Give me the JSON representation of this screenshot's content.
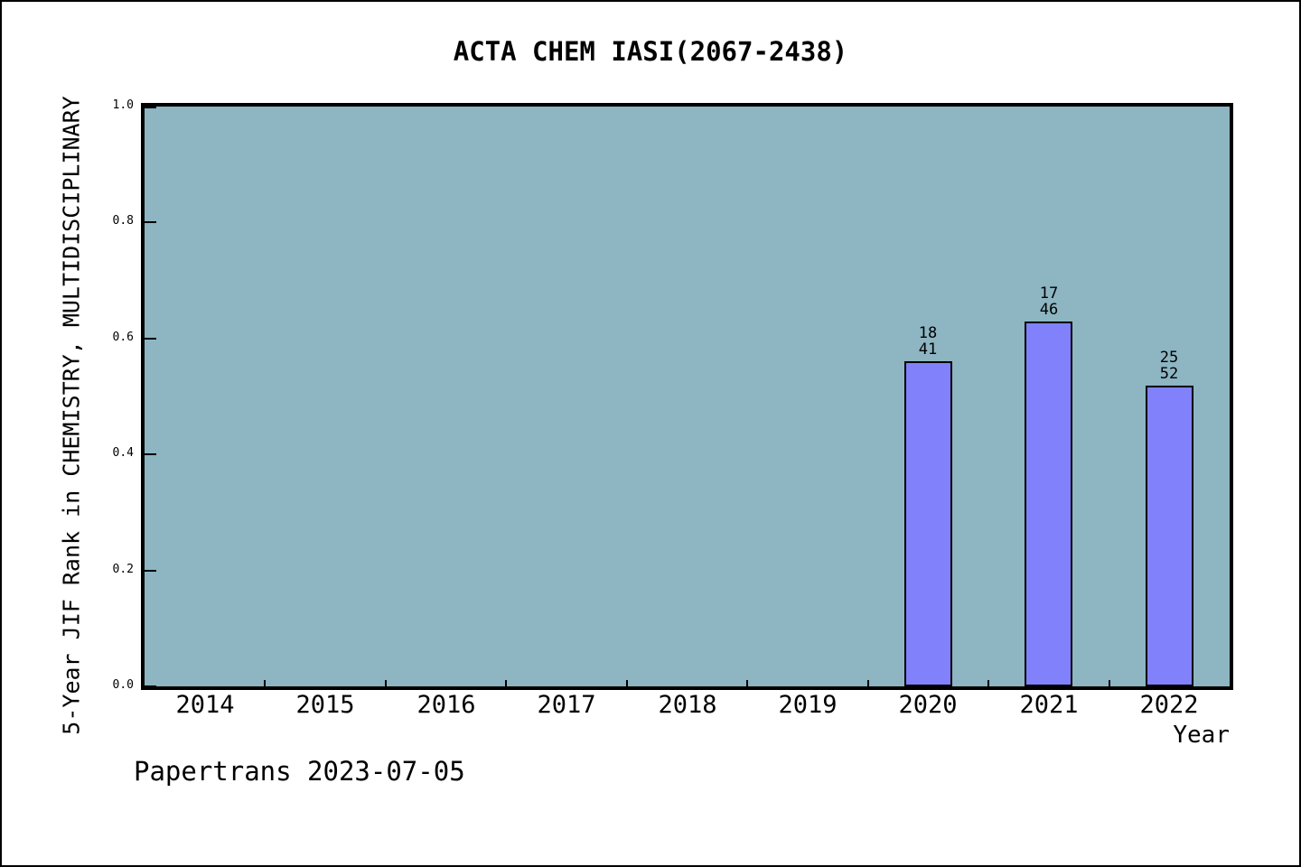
{
  "figure": {
    "background": "#ffffff",
    "border_color": "#000000"
  },
  "chart_data": {
    "type": "bar",
    "title": "ACTA CHEM IASI(2067-2438)",
    "xlabel": "Year",
    "ylabel": "5-Year JIF Rank in CHEMISTRY, MULTIDISCIPLINARY",
    "categories": [
      "2014",
      "2015",
      "2016",
      "2017",
      "2018",
      "2019",
      "2020",
      "2021",
      "2022"
    ],
    "ytick_labels": [
      "1.0",
      "0.8",
      "0.6",
      "0.4",
      "0.2",
      "0.0"
    ],
    "ylim": [
      0.0,
      1.0
    ],
    "grid": false,
    "legend": false,
    "plot_background": "#8db5c2",
    "bar_fill": "#8181fb",
    "bar_stroke": "#000000",
    "bars": [
      {
        "category": "2020",
        "value": 0.561,
        "label_top": "18",
        "label_bottom": "41"
      },
      {
        "category": "2021",
        "value": 0.63,
        "label_top": "17",
        "label_bottom": "46"
      },
      {
        "category": "2022",
        "value": 0.519,
        "label_top": "25",
        "label_bottom": "52"
      }
    ]
  },
  "footer": {
    "text": "Papertrans 2023-07-05"
  }
}
